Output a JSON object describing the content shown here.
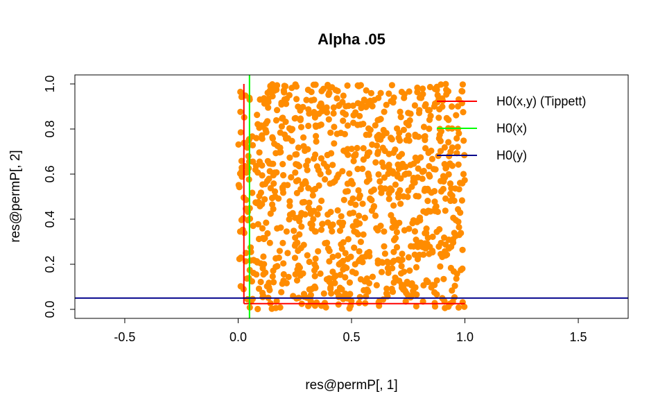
{
  "chart_data": {
    "type": "scatter",
    "title": "Alpha .05",
    "xlabel": "res@permP[, 1]",
    "ylabel": "res@permP[, 2]",
    "xlim": [
      -0.72,
      1.72
    ],
    "ylim": [
      -0.04,
      1.04
    ],
    "x_ticks": [
      "-0.5",
      "0.0",
      "0.5",
      "1.0",
      "1.5"
    ],
    "x_tick_values": [
      -0.5,
      0.0,
      0.5,
      1.0,
      1.5
    ],
    "y_ticks": [
      "0.0",
      "0.2",
      "0.4",
      "0.6",
      "0.8",
      "1.0"
    ],
    "y_tick_values": [
      0.0,
      0.2,
      0.4,
      0.6,
      0.8,
      1.0
    ],
    "grid": false,
    "legend_position": "top-right",
    "point_color": "#ff8c00",
    "point_count": 1000,
    "point_x_range": [
      0.0,
      1.0
    ],
    "point_y_range": [
      0.0,
      1.0
    ],
    "reference_lines": [
      {
        "name": "H0(x,y) (Tippett)",
        "color": "#ff0000",
        "segments": [
          {
            "orientation": "vertical",
            "x": 0.0253,
            "from": 0.0253,
            "to": 1.0
          },
          {
            "orientation": "horizontal",
            "y": 0.0253,
            "from": 0.0253,
            "to": 1.0
          }
        ]
      },
      {
        "name": "H0(x)",
        "color": "#00ff00",
        "segments": [
          {
            "orientation": "vertical",
            "x": 0.05,
            "from": -0.04,
            "to": 1.04
          }
        ]
      },
      {
        "name": "H0(y)",
        "color": "#00008b",
        "segments": [
          {
            "orientation": "horizontal",
            "y": 0.05,
            "from": -0.72,
            "to": 1.72
          }
        ]
      }
    ],
    "legend": [
      {
        "label": "H0(x,y) (Tippett)",
        "color": "#ff0000"
      },
      {
        "label": "H0(x)",
        "color": "#00ff00"
      },
      {
        "label": "H0(y)",
        "color": "#00008b"
      }
    ]
  }
}
